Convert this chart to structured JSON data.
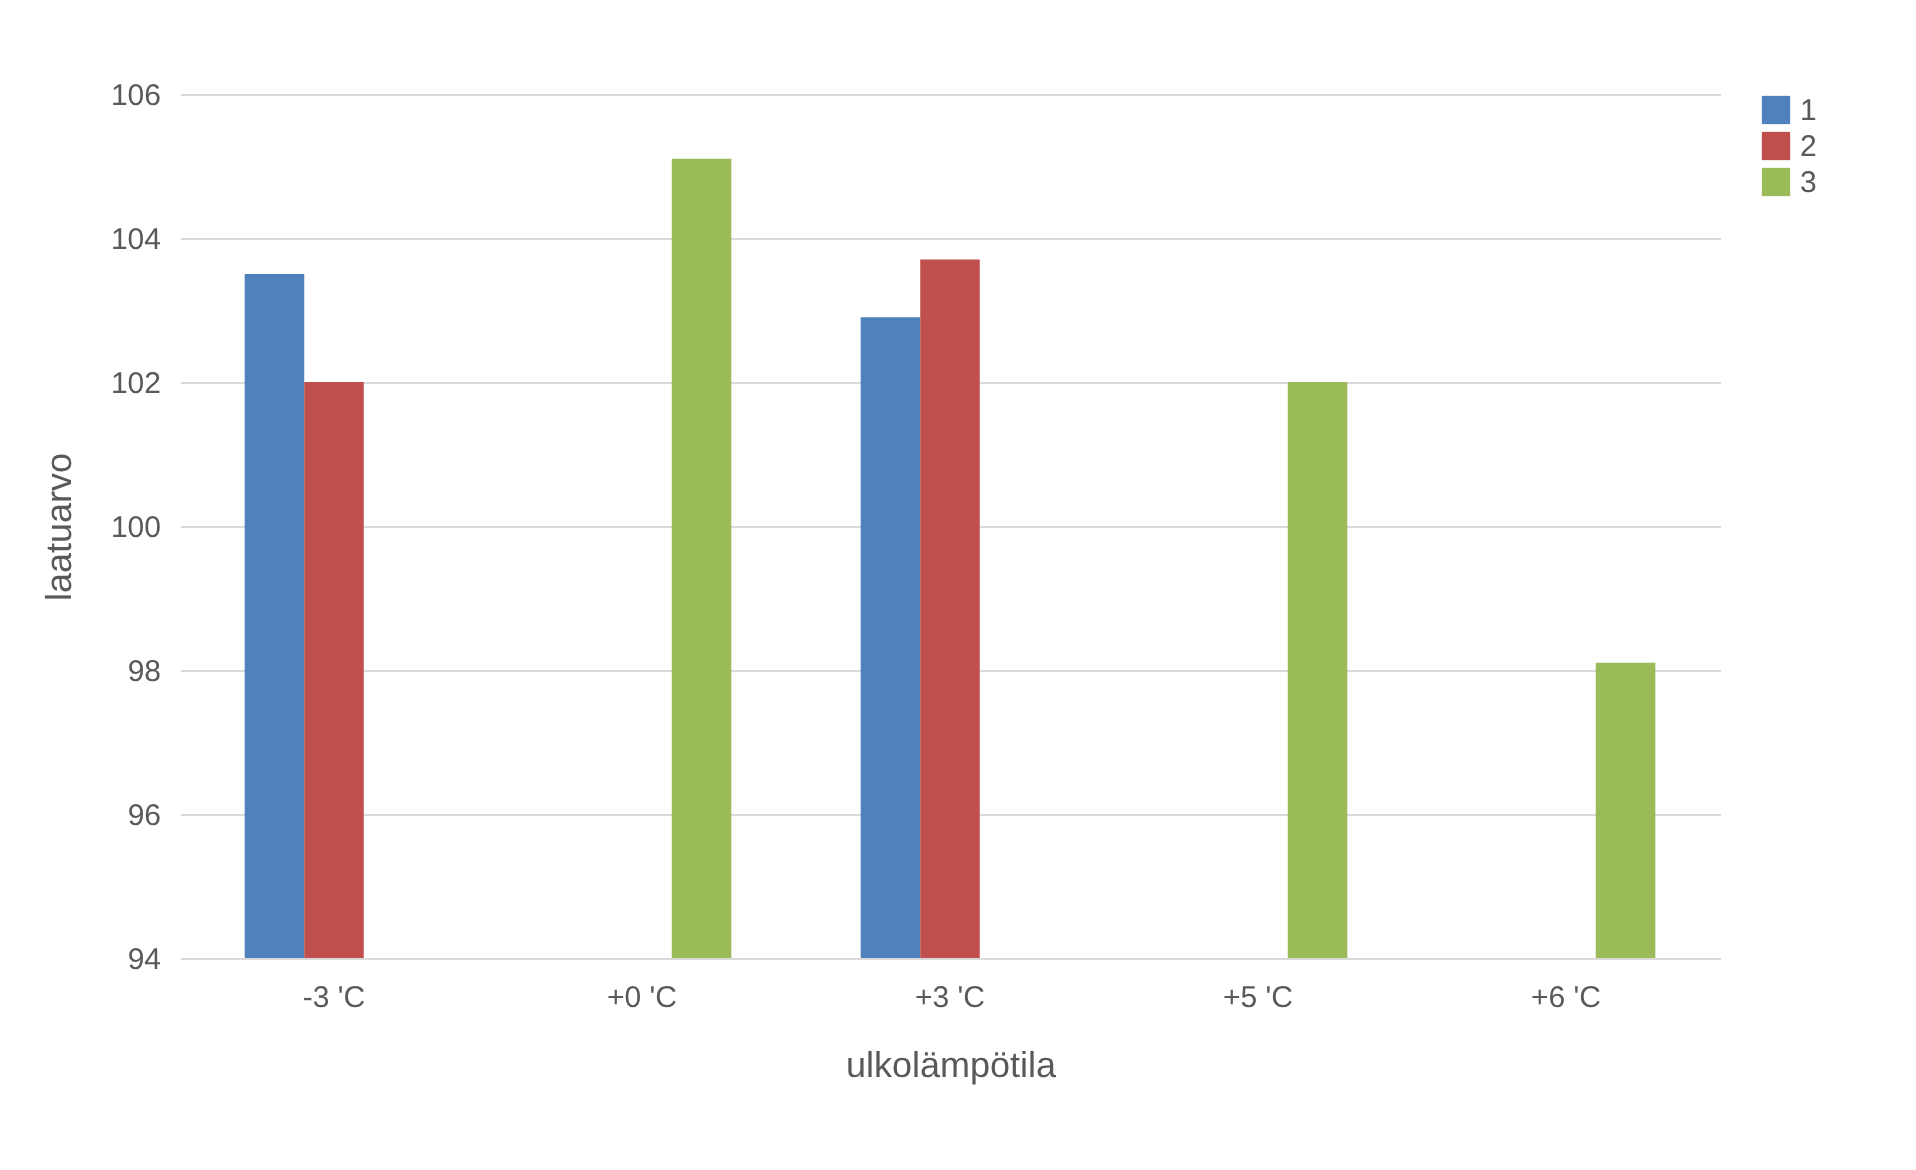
{
  "chart_data": {
    "type": "bar",
    "xlabel": "ulkolämpötila",
    "ylabel": "laatuarvo",
    "categories": [
      "-3 'C",
      "+0 'C",
      "+3 'C",
      "+5 'C",
      "+6 'C"
    ],
    "series": [
      {
        "name": "1",
        "color": "#4f81bd",
        "values": [
          103.5,
          null,
          102.9,
          null,
          null
        ]
      },
      {
        "name": "2",
        "color": "#c0504d",
        "values": [
          102.0,
          null,
          103.7,
          null,
          null
        ]
      },
      {
        "name": "3",
        "color": "#9bbb59",
        "values": [
          null,
          105.1,
          null,
          102.0,
          98.1
        ]
      }
    ],
    "ylim": [
      94,
      106
    ],
    "yticks": [
      94,
      96,
      98,
      100,
      102,
      104,
      106
    ],
    "grid": "y",
    "legend": "right"
  }
}
